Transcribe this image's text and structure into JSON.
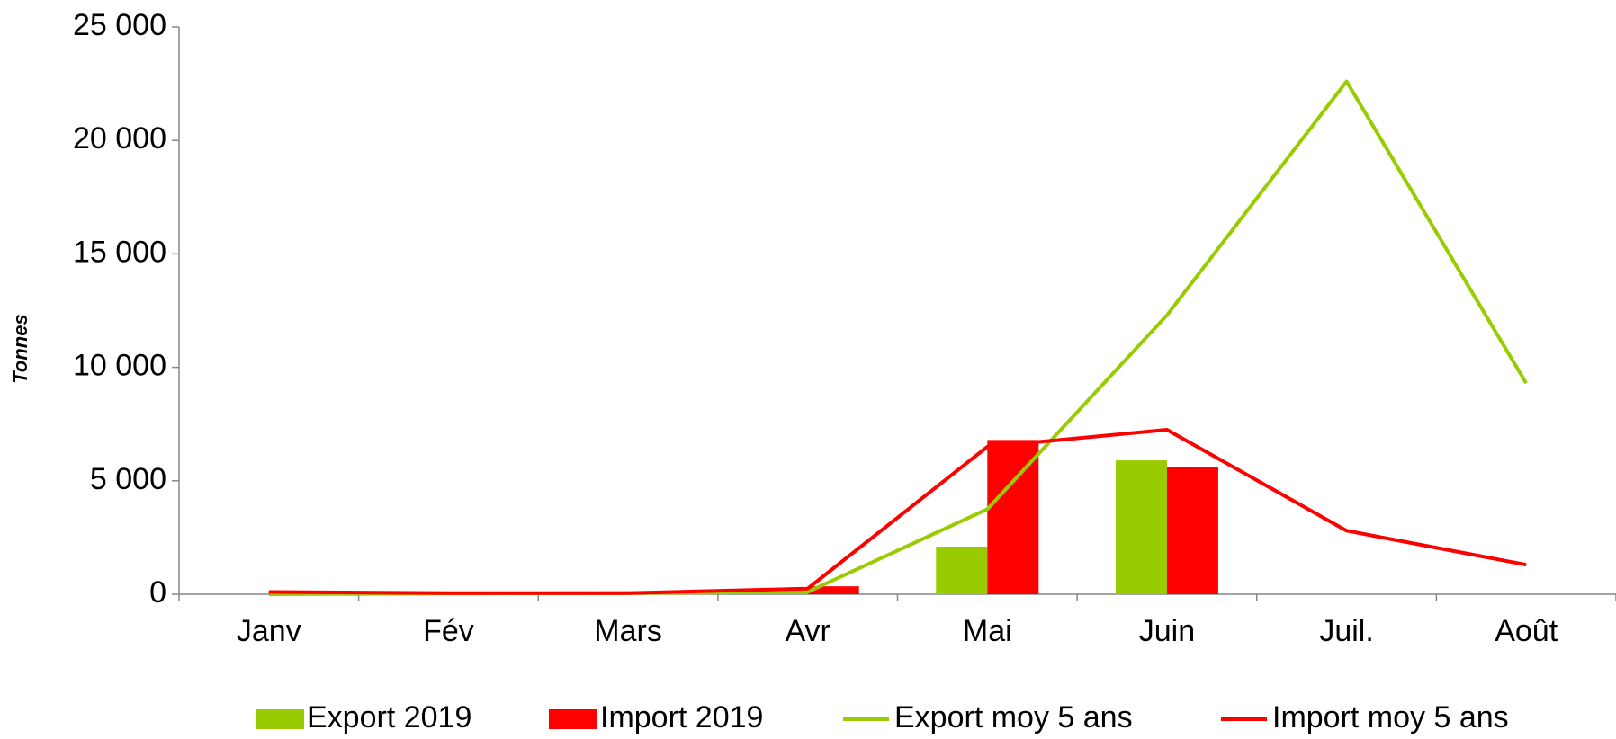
{
  "chart_data": {
    "type": "bar",
    "ylabel": "Tonnes",
    "categories": [
      "Janv",
      "Fév",
      "Mars",
      "Avr",
      "Mai",
      "Juin",
      "Juil.",
      "Août"
    ],
    "series": [
      {
        "name": "Export 2019",
        "type": "bar",
        "color": "#99cc00",
        "values": [
          0,
          0,
          0,
          50,
          2100,
          5900,
          null,
          null
        ]
      },
      {
        "name": "Import 2019",
        "type": "bar",
        "color": "#ff0000",
        "values": [
          100,
          0,
          0,
          350,
          6800,
          5600,
          null,
          null
        ]
      },
      {
        "name": "Export moy 5 ans",
        "type": "line",
        "color": "#99cc00",
        "values": [
          0,
          30,
          50,
          100,
          3750,
          12300,
          22600,
          9300
        ]
      },
      {
        "name": "Import moy 5 ans",
        "type": "line",
        "color": "#ff0000",
        "values": [
          100,
          50,
          50,
          250,
          6500,
          7250,
          2800,
          1300
        ]
      }
    ],
    "ylim": [
      0,
      25000
    ],
    "yticks": [
      0,
      {
        "value": 5000,
        "label": "5 000"
      },
      {
        "value": 10000,
        "label": "10 000"
      },
      {
        "value": 15000,
        "label": "15 000"
      },
      {
        "value": 20000,
        "label": "20 000"
      },
      {
        "value": 25000,
        "label": "25 000"
      }
    ],
    "legend": "bottom"
  }
}
